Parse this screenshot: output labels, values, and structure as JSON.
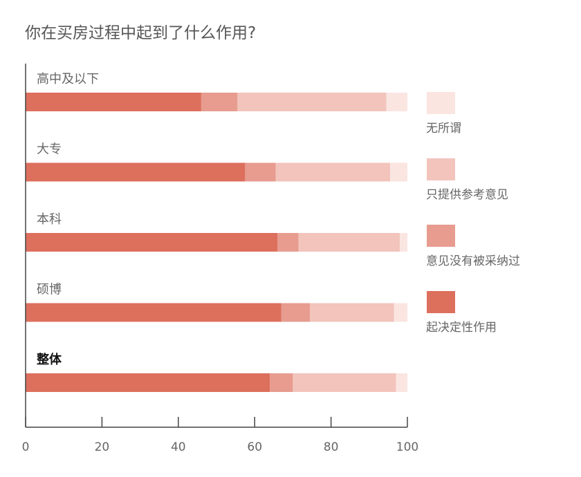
{
  "title": "你在买房过程中起到了什么作用?",
  "chart_data": {
    "type": "bar",
    "stacked": true,
    "orientation": "horizontal",
    "title": "你在买房过程中起到了什么作用?",
    "categories": [
      "高中及以下",
      "大专",
      "本科",
      "硕博",
      "整体"
    ],
    "highlighted_category": "整体",
    "series": [
      {
        "name": "起决定性作用",
        "color": "#dd6f5d",
        "values": [
          46,
          57.5,
          66,
          67,
          64
        ]
      },
      {
        "name": "意见没有被采纳过",
        "color": "#e79c8f",
        "values": [
          9.5,
          8,
          5.5,
          7.5,
          6
        ]
      },
      {
        "name": "只提供参考意见",
        "color": "#f2c4bc",
        "values": [
          39,
          30,
          26.5,
          22,
          27
        ]
      },
      {
        "name": "无所谓",
        "color": "#fae5e1",
        "values": [
          5.5,
          4.5,
          2,
          3.5,
          3
        ]
      }
    ],
    "xlim": [
      0,
      100
    ],
    "xticks": [
      0,
      20,
      40,
      60,
      80,
      100
    ],
    "legend_position": "right",
    "legend_order": [
      "无所谓",
      "只提供参考意见",
      "意见没有被采纳过",
      "起决定性作用"
    ],
    "grid": false
  }
}
